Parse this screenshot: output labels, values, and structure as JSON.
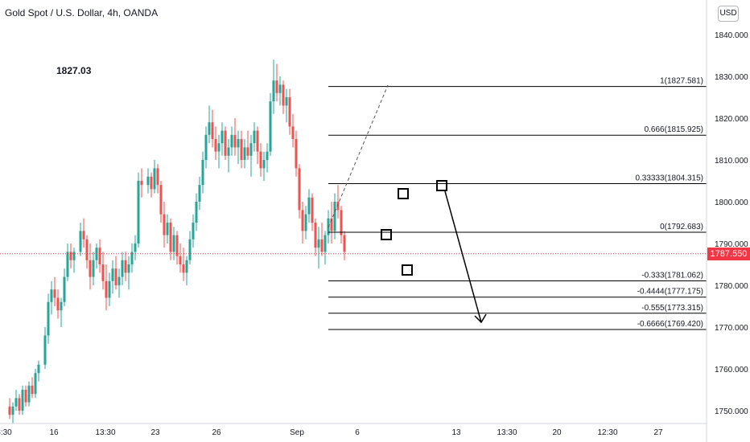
{
  "header": {
    "title": "Gold Spot / U.S. Dollar, 4h, OANDA",
    "note": "1827.03",
    "currency": "USD"
  },
  "current_price": {
    "label": "1787.550",
    "value": 1787.55
  },
  "colors": {
    "up": "#26a69a",
    "down": "#ef5350",
    "line": "#000000",
    "price": "#f23645",
    "axis_text": "#131722"
  },
  "chart_data": {
    "type": "candlestick",
    "title": "Gold Spot / U.S. Dollar, 4h, OANDA",
    "ylim": [
      1747,
      1847
    ],
    "y_ticks": [
      1750,
      1760,
      1770,
      1780,
      1790,
      1800,
      1810,
      1820,
      1830,
      1840
    ],
    "y_tick_labels": [
      "1750.000",
      "1760.000",
      "1770.000",
      "1780.000",
      "1790.000",
      "1800.000",
      "1810.000",
      "1820.000",
      "1830.000",
      "1840.000"
    ],
    "x_labels": [
      "3:30",
      "16",
      "13:30",
      "23",
      "26",
      "Sep",
      "6",
      "13",
      "13:30",
      "20",
      "12:30",
      "27"
    ],
    "fib_levels": [
      {
        "ratio": "1",
        "price": 1827.581,
        "label": "1(1827.581)"
      },
      {
        "ratio": "0.666",
        "price": 1815.925,
        "label": "0.666(1815.925)"
      },
      {
        "ratio": "0.33333",
        "price": 1804.315,
        "label": "0.33333(1804.315)"
      },
      {
        "ratio": "0",
        "price": 1792.683,
        "label": "0(1792.683)"
      },
      {
        "ratio": "-0.333",
        "price": 1781.062,
        "label": "-0.333(1781.062)"
      },
      {
        "ratio": "-0.4444",
        "price": 1777.175,
        "label": "-0.4444(1777.175)"
      },
      {
        "ratio": "-0.555",
        "price": 1773.315,
        "label": "-0.555(1773.315)"
      },
      {
        "ratio": "-0.6666",
        "price": 1769.42,
        "label": "-0.6666(1769.420)"
      }
    ],
    "candles_ohlc": [
      [
        1751,
        1753,
        1748,
        1749
      ],
      [
        1749,
        1752,
        1747,
        1751
      ],
      [
        1751,
        1755,
        1750,
        1753
      ],
      [
        1753,
        1754,
        1749,
        1750
      ],
      [
        1750,
        1756,
        1749,
        1755
      ],
      [
        1755,
        1756,
        1751,
        1752
      ],
      [
        1752,
        1757,
        1751,
        1756
      ],
      [
        1756,
        1758,
        1753,
        1754
      ],
      [
        1754,
        1760,
        1753,
        1759
      ],
      [
        1759,
        1762,
        1757,
        1761
      ],
      [
        1761,
        1770,
        1760,
        1768
      ],
      [
        1768,
        1778,
        1766,
        1776
      ],
      [
        1776,
        1781,
        1773,
        1779
      ],
      [
        1779,
        1782,
        1775,
        1777
      ],
      [
        1777,
        1779,
        1772,
        1774
      ],
      [
        1774,
        1777,
        1770,
        1776
      ],
      [
        1776,
        1784,
        1775,
        1782
      ],
      [
        1782,
        1790,
        1781,
        1788
      ],
      [
        1788,
        1790,
        1784,
        1786
      ],
      [
        1786,
        1789,
        1783,
        1788
      ],
      [
        1788,
        1795,
        1787,
        1793
      ],
      [
        1793,
        1796,
        1789,
        1791
      ],
      [
        1791,
        1792,
        1784,
        1786
      ],
      [
        1786,
        1790,
        1779,
        1782
      ],
      [
        1782,
        1788,
        1780,
        1786
      ],
      [
        1786,
        1790,
        1784,
        1789
      ],
      [
        1789,
        1791,
        1783,
        1785
      ],
      [
        1785,
        1788,
        1779,
        1781
      ],
      [
        1781,
        1785,
        1774,
        1777
      ],
      [
        1777,
        1783,
        1775,
        1781
      ],
      [
        1781,
        1786,
        1778,
        1784
      ],
      [
        1784,
        1787,
        1779,
        1780
      ],
      [
        1780,
        1784,
        1777,
        1782
      ],
      [
        1782,
        1788,
        1780,
        1786
      ],
      [
        1786,
        1788,
        1781,
        1783
      ],
      [
        1783,
        1787,
        1779,
        1785
      ],
      [
        1785,
        1790,
        1783,
        1788
      ],
      [
        1788,
        1792,
        1786,
        1790
      ],
      [
        1790,
        1807,
        1789,
        1805
      ],
      [
        1805,
        1808,
        1801,
        1804
      ],
      [
        1804,
        1808,
        1802,
        1806
      ],
      [
        1806,
        1807,
        1801,
        1803
      ],
      [
        1803,
        1810,
        1802,
        1808
      ],
      [
        1808,
        1809,
        1802,
        1804
      ],
      [
        1804,
        1805,
        1795,
        1797
      ],
      [
        1797,
        1800,
        1789,
        1792
      ],
      [
        1792,
        1797,
        1790,
        1795
      ],
      [
        1795,
        1796,
        1786,
        1788
      ],
      [
        1788,
        1794,
        1786,
        1792
      ],
      [
        1792,
        1793,
        1785,
        1787
      ],
      [
        1787,
        1790,
        1783,
        1785
      ],
      [
        1785,
        1789,
        1781,
        1783
      ],
      [
        1783,
        1787,
        1780,
        1786
      ],
      [
        1786,
        1793,
        1785,
        1791
      ],
      [
        1791,
        1797,
        1789,
        1795
      ],
      [
        1795,
        1802,
        1793,
        1800
      ],
      [
        1800,
        1806,
        1798,
        1804
      ],
      [
        1804,
        1812,
        1802,
        1810
      ],
      [
        1810,
        1818,
        1808,
        1816
      ],
      [
        1816,
        1823,
        1814,
        1819
      ],
      [
        1819,
        1822,
        1813,
        1815
      ],
      [
        1815,
        1818,
        1810,
        1812
      ],
      [
        1812,
        1816,
        1808,
        1814
      ],
      [
        1814,
        1819,
        1811,
        1817
      ],
      [
        1817,
        1818,
        1810,
        1811
      ],
      [
        1811,
        1815,
        1807,
        1813
      ],
      [
        1813,
        1818,
        1811,
        1816
      ],
      [
        1816,
        1820,
        1811,
        1813
      ],
      [
        1813,
        1817,
        1809,
        1815
      ],
      [
        1815,
        1817,
        1808,
        1810
      ],
      [
        1810,
        1815,
        1808,
        1813
      ],
      [
        1813,
        1817,
        1810,
        1811
      ],
      [
        1811,
        1816,
        1806,
        1814
      ],
      [
        1814,
        1819,
        1812,
        1817
      ],
      [
        1817,
        1818,
        1809,
        1812
      ],
      [
        1812,
        1814,
        1806,
        1808
      ],
      [
        1808,
        1812,
        1805,
        1810
      ],
      [
        1810,
        1814,
        1807,
        1812
      ],
      [
        1812,
        1826,
        1811,
        1824
      ],
      [
        1824,
        1834,
        1821,
        1829
      ],
      [
        1829,
        1833,
        1824,
        1826
      ],
      [
        1826,
        1830,
        1823,
        1828
      ],
      [
        1828,
        1829,
        1821,
        1823
      ],
      [
        1823,
        1827,
        1819,
        1825
      ],
      [
        1825,
        1827,
        1816,
        1818
      ],
      [
        1818,
        1821,
        1813,
        1815
      ],
      [
        1815,
        1817,
        1806,
        1808
      ],
      [
        1808,
        1809,
        1796,
        1798
      ],
      [
        1798,
        1800,
        1790,
        1793
      ],
      [
        1793,
        1799,
        1791,
        1797
      ],
      [
        1797,
        1803,
        1795,
        1801
      ],
      [
        1801,
        1802,
        1793,
        1795
      ],
      [
        1795,
        1796,
        1787,
        1789
      ],
      [
        1789,
        1794,
        1784,
        1791
      ],
      [
        1791,
        1795,
        1787,
        1788
      ],
      [
        1788,
        1793,
        1785,
        1792
      ],
      [
        1792,
        1798,
        1790,
        1796
      ],
      [
        1796,
        1800,
        1790,
        1793
      ],
      [
        1793,
        1802,
        1791,
        1800
      ],
      [
        1800,
        1804,
        1796,
        1798
      ],
      [
        1798,
        1799,
        1790,
        1792
      ],
      [
        1792,
        1793,
        1786,
        1788
      ]
    ],
    "candles_x": [
      12,
      16,
      20,
      24,
      28,
      32,
      36,
      40,
      44,
      48,
      56,
      60,
      64,
      68,
      72,
      76,
      80,
      84,
      88,
      92,
      100,
      104,
      108,
      112,
      116,
      120,
      124,
      128,
      132,
      136,
      140,
      144,
      148,
      152,
      156,
      160,
      164,
      168,
      172,
      176,
      184,
      188,
      192,
      196,
      200,
      204,
      208,
      212,
      216,
      220,
      224,
      228,
      232,
      236,
      240,
      244,
      248,
      252,
      256,
      260,
      264,
      268,
      272,
      276,
      280,
      284,
      288,
      292,
      296,
      300,
      304,
      308,
      312,
      316,
      320,
      324,
      328,
      332,
      336,
      340,
      344,
      348,
      352,
      356,
      360,
      364,
      368,
      372,
      376,
      380,
      384,
      388,
      392,
      396,
      400,
      404,
      408,
      412,
      416,
      420,
      424,
      428
    ]
  }
}
